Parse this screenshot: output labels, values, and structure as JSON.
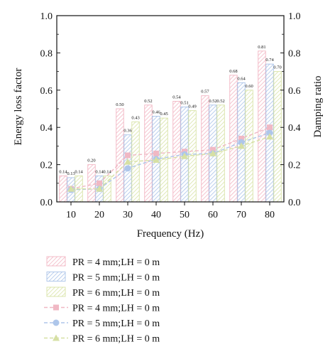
{
  "chart_data": {
    "type": "bar",
    "xlabel": "Frequency (Hz)",
    "ylabel_left": "Energy loss factor",
    "ylabel_right": "Damping ratio",
    "categories": [
      "10",
      "20",
      "30",
      "40",
      "50",
      "60",
      "70",
      "80"
    ],
    "ylim_left": [
      0.0,
      1.0
    ],
    "ylim_right": [
      0.0,
      1.0
    ],
    "yticks_left": [
      "0.0",
      "0.2",
      "0.4",
      "0.6",
      "0.8",
      "1.0"
    ],
    "yticks_right": [
      "0.0",
      "0.2",
      "0.4",
      "0.6",
      "0.8",
      "1.0"
    ],
    "grid": false,
    "legend_placement": "bottom",
    "bar_series": [
      {
        "name": "PR = 4 mm;LH = 0 m",
        "color": "#f2b6c3",
        "values": [
          0.14,
          0.2,
          0.5,
          0.52,
          0.54,
          0.57,
          0.68,
          0.81
        ],
        "labels": [
          "0.14",
          "0.20",
          "0.50",
          "0.52",
          "0.54",
          "0.57",
          "0.68",
          "0.81"
        ]
      },
      {
        "name": "PR = 5 mm;LH = 0 m",
        "color": "#a9c2e8",
        "values": [
          0.13,
          0.14,
          0.36,
          0.46,
          0.51,
          0.52,
          0.64,
          0.74
        ],
        "labels": [
          "0.13",
          "0.14",
          "0.36",
          "0.46",
          "0.51",
          "0.52",
          "0.64",
          "0.74"
        ]
      },
      {
        "name": "PR = 6 mm;LH = 0 m",
        "color": "#d8e3a6",
        "values": [
          0.14,
          0.14,
          0.43,
          0.45,
          0.49,
          0.52,
          0.6,
          0.7
        ],
        "labels": [
          "0.14",
          "0.14",
          "0.43",
          "0.45",
          "0.49",
          "0.52",
          "0.60",
          "0.70"
        ]
      }
    ],
    "line_series": [
      {
        "name": "PR = 4 mm;LH = 0 m",
        "color": "#f0b8c4",
        "marker": "square",
        "values": [
          0.07,
          0.1,
          0.25,
          0.26,
          0.27,
          0.28,
          0.34,
          0.4
        ]
      },
      {
        "name": "PR = 5 mm;LH = 0 m",
        "color": "#aec6ea",
        "marker": "circle",
        "values": [
          0.065,
          0.07,
          0.18,
          0.23,
          0.255,
          0.26,
          0.32,
          0.37
        ]
      },
      {
        "name": "PR = 6 mm;LH = 0 m",
        "color": "#d6e0a4",
        "marker": "triangle",
        "values": [
          0.07,
          0.07,
          0.215,
          0.225,
          0.245,
          0.26,
          0.3,
          0.35
        ]
      }
    ]
  }
}
